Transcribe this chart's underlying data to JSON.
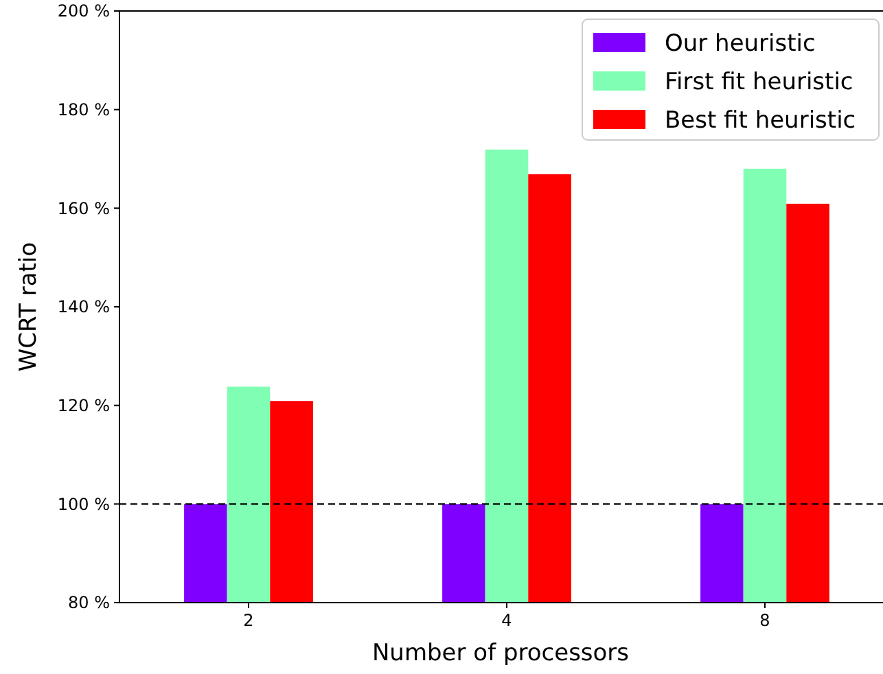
{
  "chart_data": {
    "type": "bar",
    "xlabel": "Number of processors",
    "ylabel": "WCRT ratio",
    "categories": [
      "2",
      "4",
      "8"
    ],
    "series": [
      {
        "name": "Our heuristic",
        "color": "#8000ff",
        "values": [
          100,
          100,
          100
        ]
      },
      {
        "name": "First fit heuristic",
        "color": "#80ffb4",
        "values": [
          123.8,
          171.9,
          168
        ]
      },
      {
        "name": "Best fit heuristic",
        "color": "#ff0000",
        "values": [
          120.9,
          166.9,
          160.9
        ]
      }
    ],
    "ylim": [
      80,
      200
    ],
    "yticks": [
      {
        "value": 80,
        "label": "80 %"
      },
      {
        "value": 100,
        "label": "100 %"
      },
      {
        "value": 120,
        "label": "120 %"
      },
      {
        "value": 140,
        "label": "140 %"
      },
      {
        "value": 160,
        "label": "160 %"
      },
      {
        "value": 180,
        "label": "180 %"
      },
      {
        "value": 200,
        "label": "200 %"
      }
    ],
    "ref_lines": [
      {
        "axis": "y",
        "value": 100,
        "color": "#000000",
        "line_style": "dashed"
      }
    ],
    "legend": "top right",
    "grid": false
  }
}
